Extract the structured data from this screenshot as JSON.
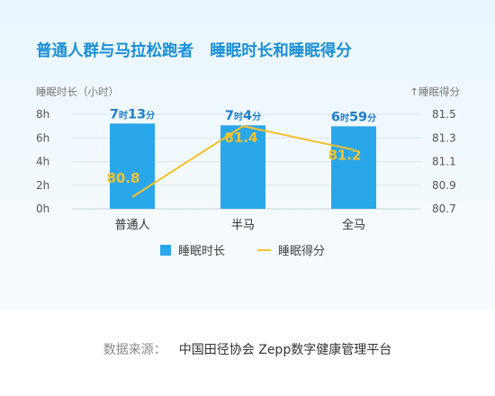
{
  "chart_data": {
    "type": "bar+line",
    "title": "普通人群与马拉松跑者   睡眠时长和睡眠得分",
    "categories": [
      "普通人",
      "半马",
      "全马"
    ],
    "y_left_label": "睡眠时长（小时）",
    "y_right_label": "↑睡眠得分",
    "y_left_ticks": [
      "8h",
      "6h",
      "4h",
      "2h",
      "0h"
    ],
    "y_right_ticks": [
      "81.5",
      "81.3",
      "81.1",
      "80.9",
      "80.7"
    ],
    "ylim_left": [
      0,
      8
    ],
    "ylim_right": [
      80.7,
      81.5
    ],
    "series": [
      {
        "name": "睡眠时长",
        "kind": "bar",
        "color": "#2aa7ea",
        "values": [
          7.217,
          7.067,
          6.983
        ],
        "labels": [
          {
            "h": "7",
            "hu": "时",
            "m": "13",
            "mu": "分"
          },
          {
            "h": "7",
            "hu": "时",
            "m": "4",
            "mu": "分"
          },
          {
            "h": "6",
            "hu": "时",
            "m": "59",
            "mu": "分"
          }
        ]
      },
      {
        "name": "睡眠得分",
        "kind": "line",
        "color": "#f6c12a",
        "values": [
          80.8,
          81.4,
          81.2
        ],
        "labels": [
          "80.8",
          "81.4",
          "81.2"
        ]
      }
    ],
    "grid": true,
    "legend_position": "bottom-center"
  },
  "source": {
    "label": "数据来源：",
    "text": "中国田径协会   Zepp数字健康管理平台"
  }
}
